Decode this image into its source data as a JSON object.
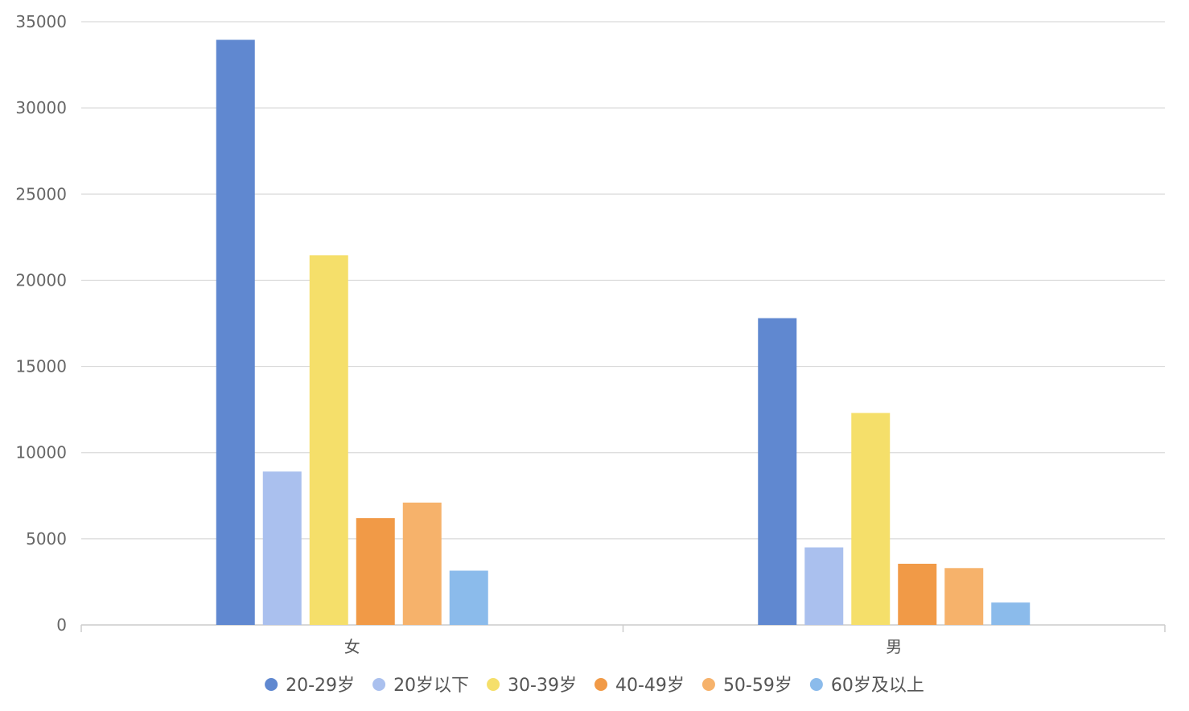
{
  "chart_data": {
    "type": "bar",
    "categories": [
      "女",
      "男"
    ],
    "series": [
      {
        "name": "20-29岁",
        "color": "#6088d0",
        "values": [
          33950,
          17800
        ]
      },
      {
        "name": "20岁以下",
        "color": "#aac0ee",
        "values": [
          8900,
          4500
        ]
      },
      {
        "name": "30-39岁",
        "color": "#f5df6a",
        "values": [
          21450,
          12300
        ]
      },
      {
        "name": "40-49岁",
        "color": "#f19a47",
        "values": [
          6200,
          3550
        ]
      },
      {
        "name": "50-59岁",
        "color": "#f6b26b",
        "values": [
          7100,
          3300
        ]
      },
      {
        "name": "60岁及以上",
        "color": "#8bbbeb",
        "values": [
          3150,
          1300
        ]
      }
    ],
    "ylim": [
      0,
      35000
    ],
    "yticks": [
      0,
      5000,
      10000,
      15000,
      20000,
      25000,
      30000,
      35000
    ],
    "grid": true,
    "legend_position": "bottom-center",
    "title": "",
    "xlabel": "",
    "ylabel": ""
  }
}
